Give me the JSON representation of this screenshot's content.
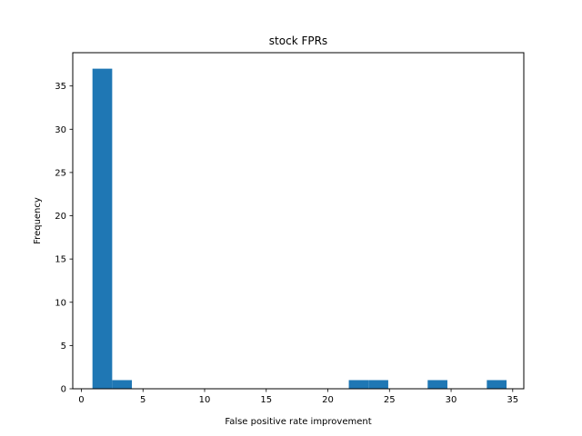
{
  "chart_data": {
    "type": "bar",
    "title": "stock FPRs",
    "xlabel": "False positive rate improvement",
    "ylabel": "Frequency",
    "xlim": [
      -0.7,
      35.9
    ],
    "ylim": [
      0,
      38.85
    ],
    "bin_width": 1.6,
    "bars": [
      {
        "x0": 0.9,
        "x1": 2.5,
        "value": 37
      },
      {
        "x0": 2.5,
        "x1": 4.1,
        "value": 1
      },
      {
        "x0": 21.7,
        "x1": 23.3,
        "value": 1
      },
      {
        "x0": 23.3,
        "x1": 24.9,
        "value": 1
      },
      {
        "x0": 28.1,
        "x1": 29.7,
        "value": 1
      },
      {
        "x0": 32.9,
        "x1": 34.5,
        "value": 1
      }
    ],
    "xticks": [
      {
        "value": 0,
        "label": "0"
      },
      {
        "value": 5,
        "label": "5"
      },
      {
        "value": 10,
        "label": "10"
      },
      {
        "value": 15,
        "label": "15"
      },
      {
        "value": 20,
        "label": "20"
      },
      {
        "value": 25,
        "label": "25"
      },
      {
        "value": 30,
        "label": "30"
      },
      {
        "value": 35,
        "label": "35"
      }
    ],
    "yticks": [
      {
        "value": 0,
        "label": "0"
      },
      {
        "value": 5,
        "label": "5"
      },
      {
        "value": 10,
        "label": "10"
      },
      {
        "value": 15,
        "label": "15"
      },
      {
        "value": 20,
        "label": "20"
      },
      {
        "value": 25,
        "label": "25"
      },
      {
        "value": 30,
        "label": "30"
      },
      {
        "value": 35,
        "label": "35"
      }
    ],
    "bar_color": "#1f77b4",
    "grid": false,
    "legend": "none"
  }
}
